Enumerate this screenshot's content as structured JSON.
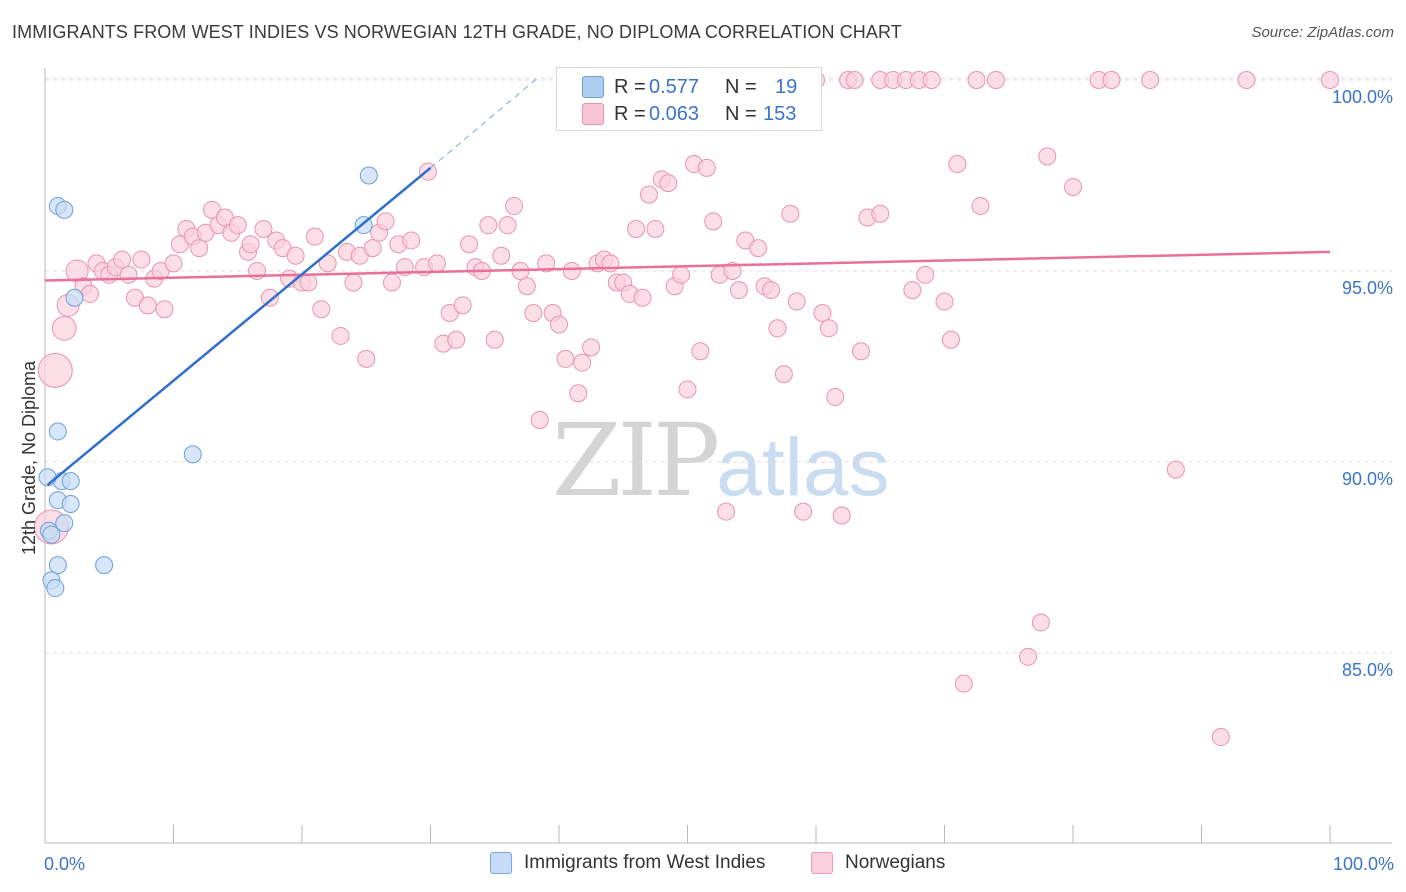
{
  "title": "IMMIGRANTS FROM WEST INDIES VS NORWEGIAN 12TH GRADE, NO DIPLOMA CORRELATION CHART",
  "source": "Source: ZipAtlas.com",
  "watermark": {
    "zip": "ZIP",
    "atlas": "atlas"
  },
  "legend_top": {
    "r_label": "R =",
    "n_label": "N =",
    "rows": [
      {
        "r": "0.577",
        "n": "19",
        "color": "#aecbf0",
        "border": "#6f9fd8"
      },
      {
        "r": "0.063",
        "n": "153",
        "color": "#f7c4d3",
        "border": "#e994ad"
      }
    ]
  },
  "legend_bottom": [
    {
      "label": "Immigrants from West Indies",
      "color": "#c6dbf5",
      "border": "#7aa6db"
    },
    {
      "label": "Norwegians",
      "color": "#f9d0dc",
      "border": "#e99bb3"
    }
  ],
  "chart_data": {
    "type": "scatter",
    "title": "IMMIGRANTS FROM WEST INDIES VS NORWEGIAN 12TH GRADE, NO DIPLOMA CORRELATION CHART",
    "xlabel": "",
    "ylabel": "12th Grade, No Diploma",
    "xlim": [
      0,
      100
    ],
    "ylim": [
      80.5,
      100.7
    ],
    "x_tick_labels": [
      "0.0%",
      "100.0%"
    ],
    "y_ticks": [
      85,
      90,
      95,
      100
    ],
    "y_tick_labels": [
      "85.0%",
      "90.0%",
      "95.0%",
      "100.0%"
    ],
    "grid": "horizontal dashed",
    "legend_position": "top-center",
    "series": [
      {
        "name": "Immigrants from West Indies",
        "color": "#6f9fd8",
        "fill": "#c6dbf5",
        "r": 0.577,
        "n": 19,
        "trend": {
          "x": [
            0.2,
            30.0
          ],
          "y": [
            89.4,
            97.7
          ],
          "dashed_to": [
            38.5,
            100.1
          ]
        },
        "points": [
          {
            "x": 1.0,
            "y": 96.7
          },
          {
            "x": 1.5,
            "y": 96.6
          },
          {
            "x": 2.3,
            "y": 94.3
          },
          {
            "x": 1.0,
            "y": 90.8
          },
          {
            "x": 1.0,
            "y": 89.0
          },
          {
            "x": 1.3,
            "y": 89.5
          },
          {
            "x": 2.0,
            "y": 89.5
          },
          {
            "x": 2.0,
            "y": 88.9
          },
          {
            "x": 0.3,
            "y": 88.2
          },
          {
            "x": 1.5,
            "y": 88.4
          },
          {
            "x": 1.0,
            "y": 87.3
          },
          {
            "x": 0.5,
            "y": 86.9
          },
          {
            "x": 0.8,
            "y": 86.7
          },
          {
            "x": 4.6,
            "y": 87.3
          },
          {
            "x": 11.5,
            "y": 90.2
          },
          {
            "x": 25.2,
            "y": 97.5
          },
          {
            "x": 24.8,
            "y": 96.2
          },
          {
            "x": 0.2,
            "y": 89.6
          },
          {
            "x": 0.5,
            "y": 88.1
          }
        ]
      },
      {
        "name": "Norwegians",
        "color": "#e994ad",
        "fill": "#f9d0dc",
        "r": 0.063,
        "n": 153,
        "trend": {
          "x": [
            0.0,
            100.0
          ],
          "y": [
            94.75,
            95.5
          ]
        },
        "points": [
          {
            "x": 0.8,
            "y": 92.4,
            "s": 2
          },
          {
            "x": 0.5,
            "y": 88.3,
            "s": 2
          },
          {
            "x": 1.5,
            "y": 93.5,
            "s": 1.4
          },
          {
            "x": 1.8,
            "y": 94.1,
            "s": 1.3
          },
          {
            "x": 2.5,
            "y": 95.0,
            "s": 1.3
          },
          {
            "x": 3.0,
            "y": 94.6
          },
          {
            "x": 3.5,
            "y": 94.4
          },
          {
            "x": 4.0,
            "y": 95.2
          },
          {
            "x": 4.5,
            "y": 95.0
          },
          {
            "x": 5.0,
            "y": 94.9
          },
          {
            "x": 5.5,
            "y": 95.1
          },
          {
            "x": 6.0,
            "y": 95.3
          },
          {
            "x": 6.5,
            "y": 94.9
          },
          {
            "x": 7.0,
            "y": 94.3
          },
          {
            "x": 7.5,
            "y": 95.3
          },
          {
            "x": 8.0,
            "y": 94.1
          },
          {
            "x": 8.5,
            "y": 94.8
          },
          {
            "x": 9.0,
            "y": 95.0
          },
          {
            "x": 9.3,
            "y": 94.0
          },
          {
            "x": 10.0,
            "y": 95.2
          },
          {
            "x": 10.5,
            "y": 95.7
          },
          {
            "x": 11.0,
            "y": 96.1
          },
          {
            "x": 11.5,
            "y": 95.9
          },
          {
            "x": 12.0,
            "y": 95.6
          },
          {
            "x": 12.5,
            "y": 96.0
          },
          {
            "x": 13.0,
            "y": 96.6
          },
          {
            "x": 13.5,
            "y": 96.2
          },
          {
            "x": 14.0,
            "y": 96.4
          },
          {
            "x": 14.5,
            "y": 96.0
          },
          {
            "x": 15.0,
            "y": 96.2
          },
          {
            "x": 15.8,
            "y": 95.5
          },
          {
            "x": 16.0,
            "y": 95.7
          },
          {
            "x": 16.5,
            "y": 95.0
          },
          {
            "x": 17.0,
            "y": 96.1
          },
          {
            "x": 17.5,
            "y": 94.3
          },
          {
            "x": 18.0,
            "y": 95.8
          },
          {
            "x": 18.5,
            "y": 95.6
          },
          {
            "x": 19.0,
            "y": 94.8
          },
          {
            "x": 19.5,
            "y": 95.4
          },
          {
            "x": 20.0,
            "y": 94.7
          },
          {
            "x": 20.5,
            "y": 94.7
          },
          {
            "x": 21.0,
            "y": 95.9
          },
          {
            "x": 21.5,
            "y": 94.0
          },
          {
            "x": 22.0,
            "y": 95.2
          },
          {
            "x": 23.0,
            "y": 93.3
          },
          {
            "x": 23.5,
            "y": 95.5
          },
          {
            "x": 24.0,
            "y": 94.7
          },
          {
            "x": 24.5,
            "y": 95.4
          },
          {
            "x": 25.0,
            "y": 92.7
          },
          {
            "x": 25.5,
            "y": 95.6
          },
          {
            "x": 26.0,
            "y": 96.0
          },
          {
            "x": 26.5,
            "y": 96.3
          },
          {
            "x": 27.0,
            "y": 94.7
          },
          {
            "x": 27.5,
            "y": 95.7
          },
          {
            "x": 28.0,
            "y": 95.1
          },
          {
            "x": 28.5,
            "y": 95.8
          },
          {
            "x": 29.5,
            "y": 95.1
          },
          {
            "x": 29.8,
            "y": 97.6
          },
          {
            "x": 30.5,
            "y": 95.2
          },
          {
            "x": 31.0,
            "y": 93.1
          },
          {
            "x": 31.5,
            "y": 93.9
          },
          {
            "x": 32.0,
            "y": 93.2
          },
          {
            "x": 32.5,
            "y": 94.1
          },
          {
            "x": 33.0,
            "y": 95.7
          },
          {
            "x": 33.5,
            "y": 95.1
          },
          {
            "x": 34.0,
            "y": 95.0
          },
          {
            "x": 34.5,
            "y": 96.2
          },
          {
            "x": 35.0,
            "y": 93.2
          },
          {
            "x": 35.5,
            "y": 95.4
          },
          {
            "x": 36.0,
            "y": 96.2
          },
          {
            "x": 36.5,
            "y": 96.7
          },
          {
            "x": 37.0,
            "y": 95.0
          },
          {
            "x": 37.5,
            "y": 94.6
          },
          {
            "x": 38.0,
            "y": 93.9
          },
          {
            "x": 38.5,
            "y": 91.1
          },
          {
            "x": 39.0,
            "y": 95.2
          },
          {
            "x": 39.5,
            "y": 93.9
          },
          {
            "x": 40.0,
            "y": 93.6
          },
          {
            "x": 40.5,
            "y": 92.7
          },
          {
            "x": 41.0,
            "y": 95.0
          },
          {
            "x": 41.5,
            "y": 91.8
          },
          {
            "x": 41.8,
            "y": 92.6
          },
          {
            "x": 42.5,
            "y": 93.0
          },
          {
            "x": 43.0,
            "y": 95.2
          },
          {
            "x": 43.5,
            "y": 95.3
          },
          {
            "x": 44.0,
            "y": 95.2
          },
          {
            "x": 44.5,
            "y": 94.7
          },
          {
            "x": 45.0,
            "y": 94.7
          },
          {
            "x": 45.5,
            "y": 94.4
          },
          {
            "x": 46.0,
            "y": 96.1
          },
          {
            "x": 46.5,
            "y": 94.3
          },
          {
            "x": 47.0,
            "y": 97.0
          },
          {
            "x": 47.5,
            "y": 96.1
          },
          {
            "x": 48.0,
            "y": 97.4
          },
          {
            "x": 48.5,
            "y": 97.3
          },
          {
            "x": 49.0,
            "y": 94.6
          },
          {
            "x": 49.5,
            "y": 94.9
          },
          {
            "x": 50.0,
            "y": 91.9
          },
          {
            "x": 50.5,
            "y": 97.8
          },
          {
            "x": 51.0,
            "y": 92.9
          },
          {
            "x": 51.5,
            "y": 97.7
          },
          {
            "x": 52.0,
            "y": 96.3
          },
          {
            "x": 52.5,
            "y": 94.9
          },
          {
            "x": 53.0,
            "y": 88.7
          },
          {
            "x": 53.5,
            "y": 95.0
          },
          {
            "x": 54.0,
            "y": 94.5
          },
          {
            "x": 54.5,
            "y": 95.8
          },
          {
            "x": 55.5,
            "y": 95.6
          },
          {
            "x": 56.0,
            "y": 94.6
          },
          {
            "x": 56.5,
            "y": 94.5
          },
          {
            "x": 57.0,
            "y": 93.5
          },
          {
            "x": 57.5,
            "y": 92.3
          },
          {
            "x": 58.0,
            "y": 96.5
          },
          {
            "x": 58.5,
            "y": 94.2
          },
          {
            "x": 59.0,
            "y": 88.7
          },
          {
            "x": 60.0,
            "y": 100.0
          },
          {
            "x": 60.5,
            "y": 93.9
          },
          {
            "x": 61.0,
            "y": 93.5
          },
          {
            "x": 61.5,
            "y": 91.7
          },
          {
            "x": 62.0,
            "y": 88.6
          },
          {
            "x": 62.5,
            "y": 100.0
          },
          {
            "x": 63.0,
            "y": 100.0
          },
          {
            "x": 65.0,
            "y": 100.0
          },
          {
            "x": 63.5,
            "y": 92.9
          },
          {
            "x": 64.0,
            "y": 96.4
          },
          {
            "x": 65.0,
            "y": 96.5
          },
          {
            "x": 66.0,
            "y": 100.0
          },
          {
            "x": 67.0,
            "y": 100.0
          },
          {
            "x": 67.5,
            "y": 94.5
          },
          {
            "x": 68.0,
            "y": 100.0
          },
          {
            "x": 68.5,
            "y": 94.9
          },
          {
            "x": 69.0,
            "y": 100.0
          },
          {
            "x": 70.0,
            "y": 94.2
          },
          {
            "x": 70.5,
            "y": 93.2
          },
          {
            "x": 71.0,
            "y": 97.8
          },
          {
            "x": 71.5,
            "y": 84.2
          },
          {
            "x": 72.5,
            "y": 100.0
          },
          {
            "x": 72.8,
            "y": 96.7
          },
          {
            "x": 74.0,
            "y": 100.0
          },
          {
            "x": 76.5,
            "y": 84.9
          },
          {
            "x": 77.5,
            "y": 85.8
          },
          {
            "x": 78.0,
            "y": 98.0
          },
          {
            "x": 80.0,
            "y": 97.2
          },
          {
            "x": 82.0,
            "y": 100.0
          },
          {
            "x": 83.0,
            "y": 100.0
          },
          {
            "x": 86.0,
            "y": 100.0
          },
          {
            "x": 88.0,
            "y": 89.8
          },
          {
            "x": 91.5,
            "y": 82.8
          },
          {
            "x": 93.5,
            "y": 100.0
          },
          {
            "x": 100.0,
            "y": 100.0
          }
        ]
      }
    ]
  }
}
